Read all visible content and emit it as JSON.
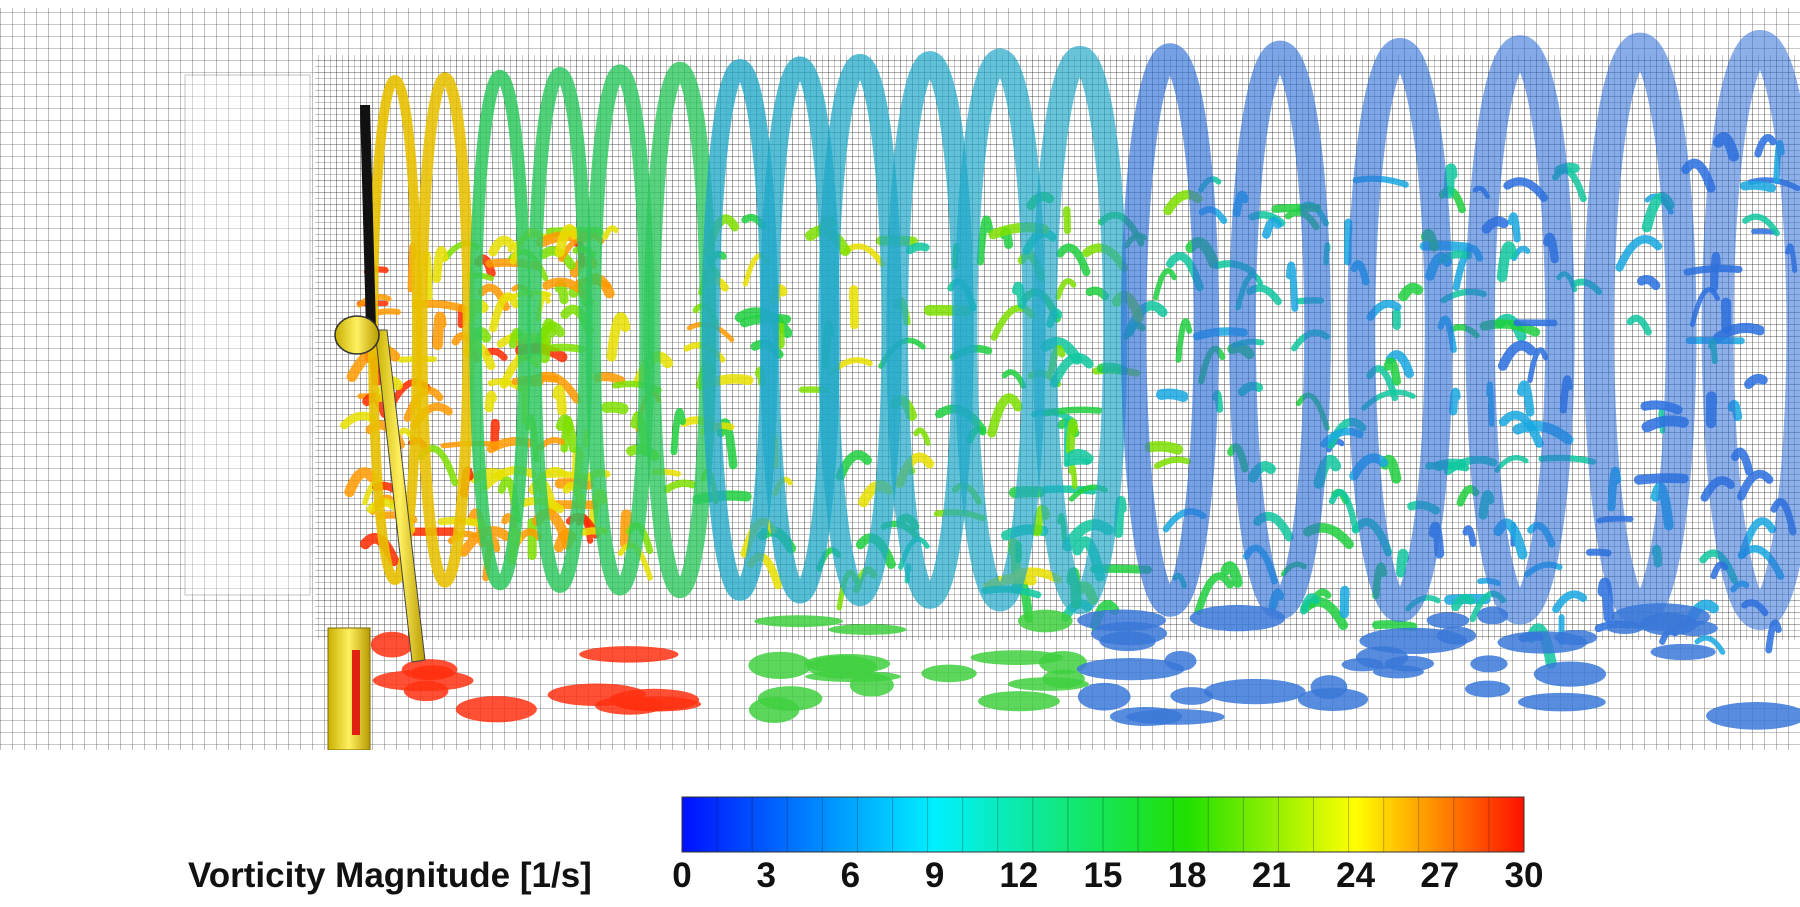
{
  "legend": {
    "title": "Vorticity Magnitude [1/s]",
    "min": 0,
    "max": 30,
    "ticks": [
      "0",
      "3",
      "6",
      "9",
      "12",
      "15",
      "18",
      "21",
      "24",
      "27",
      "30"
    ],
    "colors": [
      "#0000ff",
      "#00e6ff",
      "#00e600",
      "#ffff00",
      "#ff0000"
    ]
  }
}
